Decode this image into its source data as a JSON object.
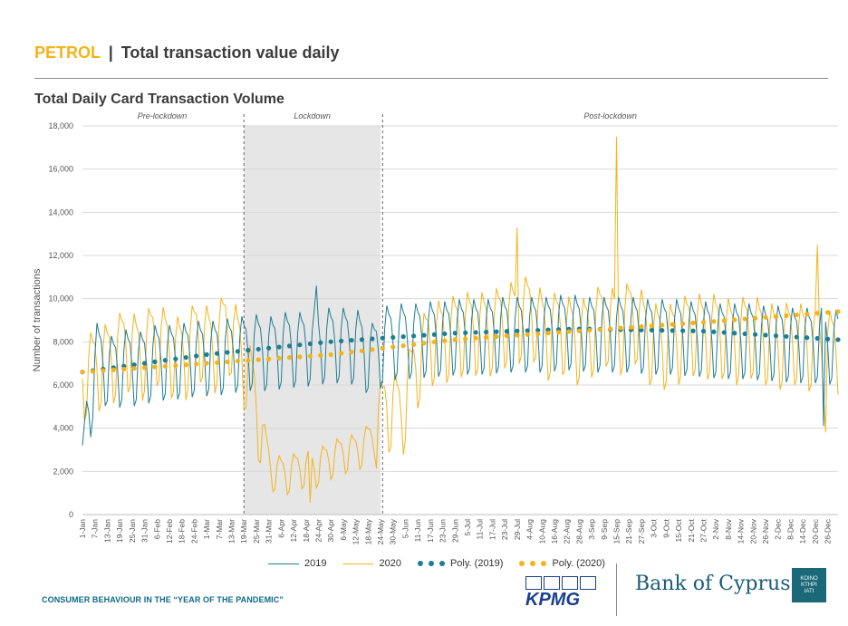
{
  "header": {
    "keyword": "PETROL",
    "separator": "|",
    "title": "Total transaction value daily"
  },
  "footer": {
    "text": "CONSUMER BEHAVIOUR IN THE “YEAR OF THE PANDEMIC”",
    "kpmg": "KPMG",
    "bank": "Bank of Cyprus",
    "logo_text": [
      "KOINO",
      "KTHPI",
      "ΙΑΤΙ"
    ]
  },
  "colors": {
    "s2019": "#1f7d93",
    "s2020": "#f5b31b",
    "shade": "#e6e6e6",
    "grid": "#d9d9d9"
  },
  "chart_data": {
    "type": "line",
    "title": "Total Daily Card Transaction Volume",
    "xlabel": "",
    "ylabel": "Number of transactions",
    "ylim": [
      0,
      18000
    ],
    "yticks": [
      "0",
      "2,000",
      "4,000",
      "6,000",
      "8,000",
      "10,000",
      "12,000",
      "14,000",
      "16,000",
      "18,000"
    ],
    "grid": "horizontal",
    "legend_position": "bottom",
    "x_tick_labels": [
      "1-Jan",
      "7-Jan",
      "13-Jan",
      "19-Jan",
      "25-Jan",
      "31-Jan",
      "6-Feb",
      "12-Feb",
      "18-Feb",
      "24-Feb",
      "1-Mar",
      "7-Mar",
      "13-Mar",
      "19-Mar",
      "25-Mar",
      "31-Mar",
      "6-Apr",
      "12-Apr",
      "18-Apr",
      "24-Apr",
      "30-Apr",
      "6-May",
      "12-May",
      "18-May",
      "24-May",
      "30-May",
      "5-Jun",
      "11-Jun",
      "17-Jun",
      "23-Jun",
      "29-Jun",
      "5-Jul",
      "11-Jul",
      "17-Jul",
      "23-Jul",
      "29-Jul",
      "4-Aug",
      "10-Aug",
      "16-Aug",
      "22-Aug",
      "28-Aug",
      "3-Sep",
      "9-Sep",
      "15-Sep",
      "21-Sep",
      "27-Sep",
      "3-Oct",
      "9-Oct",
      "15-Oct",
      "21-Oct",
      "27-Oct",
      "2-Nov",
      "8-Nov",
      "14-Nov",
      "20-Nov",
      "26-Nov",
      "2-Dec",
      "8-Dec",
      "14-Dec",
      "20-Dec",
      "26-Dec"
    ],
    "periods": [
      {
        "label": "Pre-lockdown",
        "start_day": 1,
        "end_day": 78
      },
      {
        "label": "Lockdown",
        "start_day": 79,
        "end_day": 145,
        "shaded": true
      },
      {
        "label": "Post-lockdown",
        "start_day": 146,
        "end_day": 366
      }
    ],
    "x": "day of year, 1 = 1-Jan through 366 = 31-Dec",
    "series": [
      {
        "name": "2019",
        "style": "line",
        "color": "#1f7d93",
        "weekly_pattern": "weekly oscillation roughly ±1,800 around its trend",
        "values_weekly_approx": [
          3200,
          7400,
          6800,
          7100,
          7000,
          7300,
          7300,
          7400,
          7500,
          7500,
          7600,
          7700,
          7800,
          7700,
          7900,
          7900,
          8000,
          8100,
          8100,
          8000,
          7400,
          8200,
          8300,
          8300,
          8400,
          8400,
          8500,
          8500,
          8500,
          8600,
          8600,
          8600,
          8600,
          8700,
          8700,
          8600,
          8600,
          8600,
          8600,
          8500,
          8500,
          8500,
          8400,
          8400,
          8300,
          8300,
          8300,
          8200,
          8200,
          8100,
          8100,
          8100,
          8000
        ],
        "annotations": [
          {
            "day": 1,
            "value": 3200
          },
          {
            "day": 114,
            "value": 10600
          },
          {
            "day": 359,
            "value": 4100
          }
        ]
      },
      {
        "name": "2020",
        "style": "line",
        "color": "#f5b31b",
        "values_weekly_approx": [
          6500,
          7000,
          7300,
          8000,
          7400,
          8300,
          7700,
          7400,
          8500,
          7700,
          8900,
          7500,
          5200,
          2100,
          1900,
          2200,
          2200,
          2600,
          2900,
          3000,
          3600,
          5200,
          4700,
          7000,
          8200,
          8300,
          8600,
          8700,
          8600,
          9000,
          9200,
          9500,
          8400,
          8800,
          8200,
          8500,
          9200,
          8600,
          9400,
          8300,
          8000,
          8200,
          8700,
          8500,
          8600,
          8200,
          8600,
          8300,
          8000,
          8300,
          8000,
          7800
        ],
        "annotations": [
          {
            "day": 259,
            "value": 17500
          },
          {
            "day": 211,
            "value": 13300
          },
          {
            "day": 356,
            "value": 12500
          },
          {
            "day": 111,
            "value": 550
          },
          {
            "day": 360,
            "value": 3800
          }
        ]
      },
      {
        "name": "Poly. (2019)",
        "style": "dotted-trend",
        "color": "#1f7d93",
        "trend_points": [
          [
            1,
            6600
          ],
          [
            60,
            7400
          ],
          [
            120,
            8000
          ],
          [
            180,
            8400
          ],
          [
            240,
            8600
          ],
          [
            300,
            8500
          ],
          [
            366,
            8100
          ]
        ]
      },
      {
        "name": "Poly. (2020)",
        "style": "dotted-trend",
        "color": "#f5b31b",
        "trend_points": [
          [
            1,
            6600
          ],
          [
            60,
            7000
          ],
          [
            120,
            7400
          ],
          [
            180,
            8100
          ],
          [
            240,
            8500
          ],
          [
            300,
            8900
          ],
          [
            366,
            9400
          ]
        ]
      }
    ]
  }
}
